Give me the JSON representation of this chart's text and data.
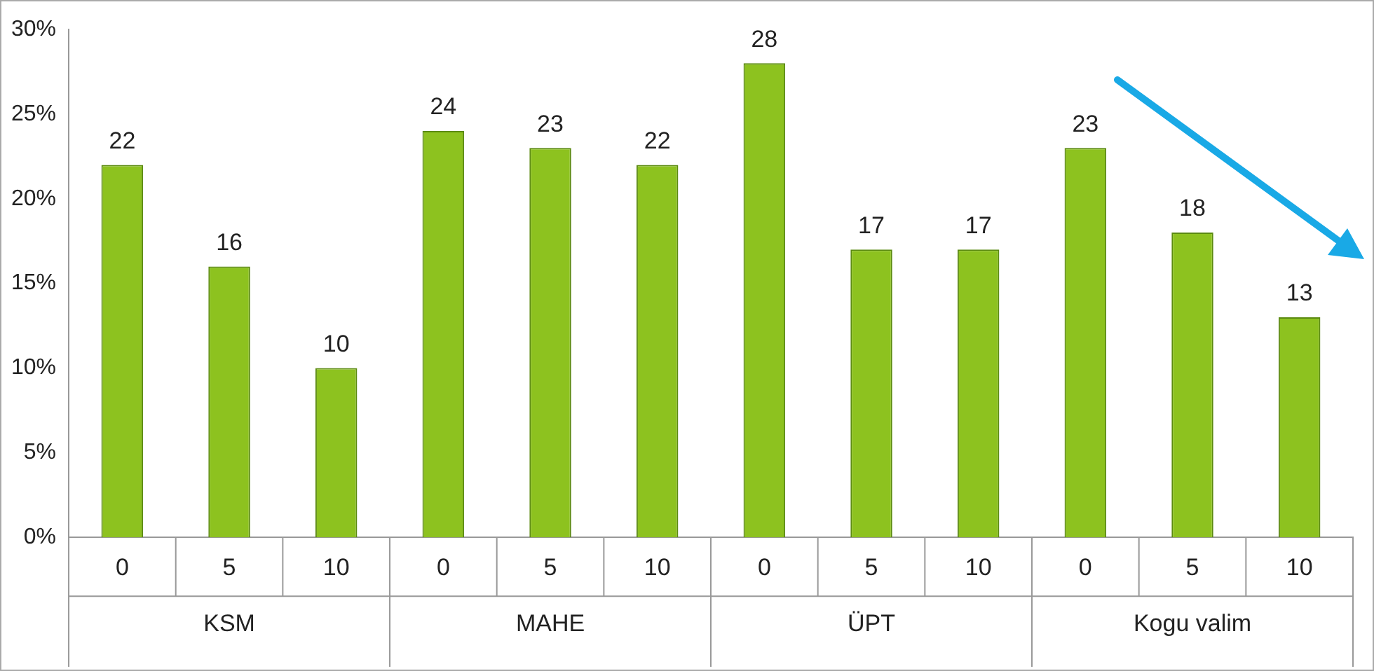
{
  "chart_data": {
    "type": "bar",
    "categories": [
      "0",
      "5",
      "10",
      "0",
      "5",
      "10",
      "0",
      "5",
      "10",
      "0",
      "5",
      "10"
    ],
    "values": [
      22,
      16,
      10,
      24,
      23,
      22,
      28,
      17,
      17,
      23,
      18,
      13
    ],
    "color": "#8dc21f",
    "data_labels": true,
    "ylim": [
      0,
      30
    ],
    "yticks": [
      {
        "value": 0,
        "label": "0%"
      },
      {
        "value": 5,
        "label": "5%"
      },
      {
        "value": 10,
        "label": "10%"
      },
      {
        "value": 15,
        "label": "15%"
      },
      {
        "value": 20,
        "label": "20%"
      },
      {
        "value": 25,
        "label": "25%"
      },
      {
        "value": 30,
        "label": "30%"
      }
    ],
    "annotations": [
      "KSM",
      "MAHE",
      "ÜPT",
      "Kogu valim"
    ],
    "grid": false,
    "legend": false
  }
}
